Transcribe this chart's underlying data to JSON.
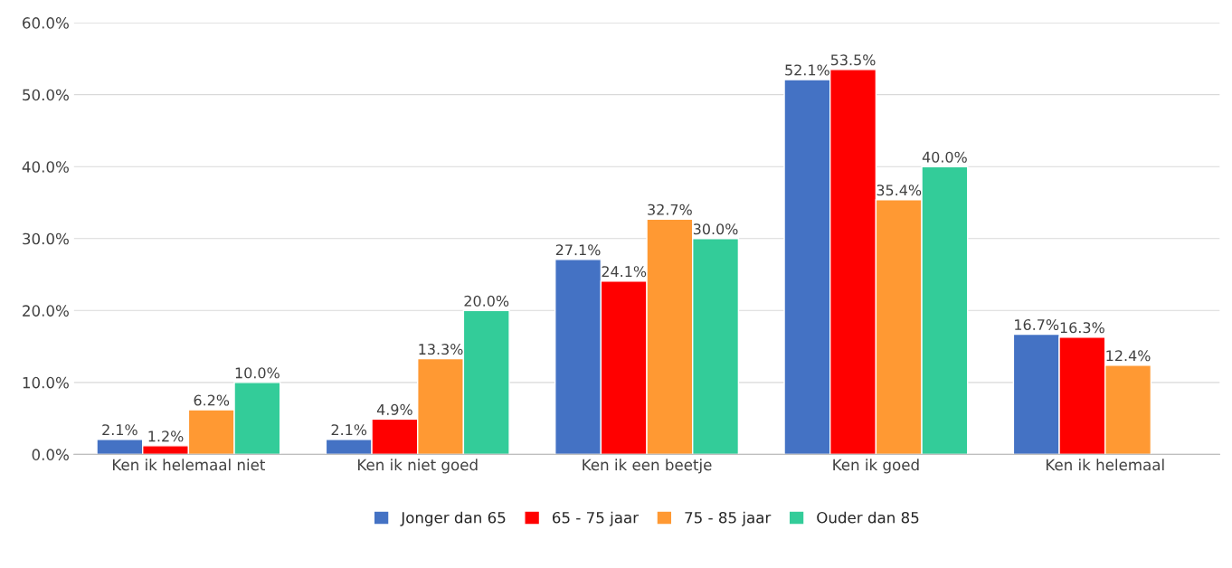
{
  "chart_data": {
    "type": "bar",
    "categories": [
      "Ken ik helemaal niet",
      "Ken ik niet goed",
      "Ken ik een beetje",
      "Ken ik goed",
      "Ken ik helemaal"
    ],
    "series": [
      {
        "name": "Jonger dan 65",
        "color": "#4472c4",
        "values": [
          2.1,
          2.1,
          27.1,
          52.1,
          16.7
        ],
        "value_labels": [
          "2.1%",
          "2.1%",
          "27.1%",
          "52.1%",
          "16.7%"
        ]
      },
      {
        "name": "65 - 75 jaar",
        "color": "#ff0000",
        "values": [
          1.2,
          4.9,
          24.1,
          53.5,
          16.3
        ],
        "value_labels": [
          "1.2%",
          "4.9%",
          "24.1%",
          "53.5%",
          "16.3%"
        ]
      },
      {
        "name": "75 - 85 jaar",
        "color": "#ff9933",
        "values": [
          6.2,
          13.3,
          32.7,
          35.4,
          12.4
        ],
        "value_labels": [
          "6.2%",
          "13.3%",
          "32.7%",
          "35.4%",
          "12.4%"
        ]
      },
      {
        "name": "Ouder dan 85",
        "color": "#33cc99",
        "values": [
          10.0,
          20.0,
          30.0,
          40.0,
          null
        ],
        "value_labels": [
          "10.0%",
          "20.0%",
          "30.0%",
          "40.0%",
          null
        ]
      }
    ],
    "ylim": [
      0,
      60
    ],
    "yticks": [
      {
        "value": 0,
        "label": "0.0%"
      },
      {
        "value": 10,
        "label": "10.0%"
      },
      {
        "value": 20,
        "label": "20.0%"
      },
      {
        "value": 30,
        "label": "30.0%"
      },
      {
        "value": 40,
        "label": "40.0%"
      },
      {
        "value": 50,
        "label": "50.0%"
      },
      {
        "value": 60,
        "label": "60.0%"
      }
    ],
    "grid": "y",
    "legend": "bottom"
  }
}
